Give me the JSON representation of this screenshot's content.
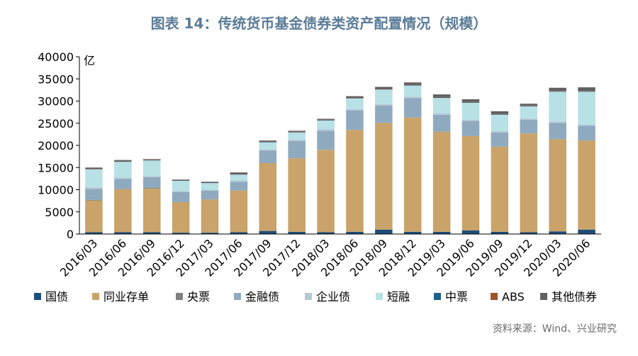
{
  "chart_data": {
    "type": "bar",
    "stacked": true,
    "title": "图表 14：传统货币基金债券类资产配置情况（规模）",
    "ylabel": "亿",
    "ylim": [
      0,
      40000
    ],
    "yticks": [
      0,
      5000,
      10000,
      15000,
      20000,
      25000,
      30000,
      35000,
      40000
    ],
    "grid": false,
    "legend_position": "bottom",
    "source": "资料来源：Wind、兴业研究",
    "categories": [
      "2016/03",
      "2016/06",
      "2016/09",
      "2016/12",
      "2017/03",
      "2017/06",
      "2017/09",
      "2017/12",
      "2018/03",
      "2018/06",
      "2018/09",
      "2018/12",
      "2019/03",
      "2019/06",
      "2019/09",
      "2019/12",
      "2020/03",
      "2020/06"
    ],
    "series": [
      {
        "name": "国债",
        "color": "#1f4e79",
        "values": [
          400,
          400,
          400,
          300,
          300,
          400,
          700,
          500,
          400,
          500,
          1000,
          500,
          500,
          800,
          500,
          400,
          600,
          1000
        ]
      },
      {
        "name": "同业存单",
        "color": "#c9a36a",
        "values": [
          7200,
          9700,
          9900,
          6900,
          7500,
          9400,
          15300,
          16600,
          18600,
          23000,
          24100,
          25800,
          22600,
          21300,
          19200,
          22300,
          20800,
          20100
        ]
      },
      {
        "name": "央票",
        "color": "#7f7f7f",
        "values": [
          100,
          100,
          100,
          0,
          0,
          0,
          0,
          0,
          0,
          0,
          0,
          0,
          0,
          0,
          0,
          0,
          0,
          0
        ]
      },
      {
        "name": "金融债",
        "color": "#8faabf",
        "values": [
          2500,
          2200,
          2400,
          2300,
          2000,
          2000,
          2800,
          3900,
          4300,
          4400,
          3900,
          4400,
          3800,
          3400,
          3200,
          3100,
          3700,
          3300
        ]
      },
      {
        "name": "企业债",
        "color": "#b4c8d6",
        "values": [
          300,
          300,
          300,
          200,
          200,
          300,
          300,
          300,
          300,
          300,
          300,
          300,
          300,
          300,
          300,
          300,
          300,
          300
        ]
      },
      {
        "name": "短融",
        "color": "#b8e1e6",
        "values": [
          4100,
          3600,
          3500,
          2300,
          1500,
          1300,
          1600,
          1600,
          2000,
          2400,
          3300,
          2500,
          3500,
          3800,
          3700,
          2700,
          6700,
          7400
        ]
      },
      {
        "name": "中票",
        "color": "#1f5f8b",
        "values": [
          100,
          100,
          100,
          100,
          100,
          100,
          100,
          100,
          100,
          100,
          100,
          100,
          100,
          100,
          100,
          100,
          100,
          100
        ]
      },
      {
        "name": "ABS",
        "color": "#a0522d",
        "values": [
          100,
          100,
          100,
          100,
          100,
          100,
          100,
          100,
          100,
          100,
          100,
          100,
          100,
          100,
          100,
          100,
          100,
          100
        ]
      },
      {
        "name": "其他债券",
        "color": "#606060",
        "values": [
          200,
          200,
          100,
          100,
          100,
          300,
          200,
          200,
          200,
          300,
          400,
          500,
          600,
          600,
          600,
          400,
          700,
          800
        ]
      }
    ]
  }
}
